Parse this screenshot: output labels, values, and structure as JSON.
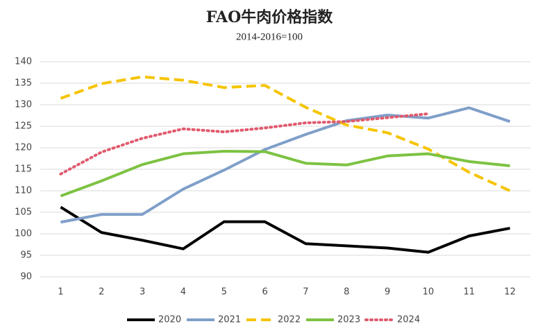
{
  "chart_data": {
    "type": "line",
    "title": "FAO牛肉价格指数",
    "subtitle": "2014-2016=100",
    "categories": [
      "1",
      "2",
      "3",
      "4",
      "5",
      "6",
      "7",
      "8",
      "9",
      "10",
      "11",
      "12"
    ],
    "series": [
      {
        "name": "2020",
        "color": "#000000",
        "dash": "solid",
        "values": [
          106.2,
          100.3,
          98.5,
          96.5,
          102.8,
          102.8,
          97.7,
          97.2,
          96.7,
          95.7,
          99.5,
          101.3
        ]
      },
      {
        "name": "2021",
        "color": "#7f9fc9",
        "dash": "solid",
        "values": [
          102.7,
          104.5,
          104.5,
          110.4,
          114.8,
          119.6,
          123.1,
          126.3,
          127.6,
          126.9,
          129.3,
          126.1
        ]
      },
      {
        "name": "2022",
        "color": "#f5c400",
        "dash": "dashed",
        "values": [
          131.5,
          134.9,
          136.5,
          135.7,
          134.0,
          134.5,
          129.4,
          125.3,
          123.5,
          119.7,
          114.3,
          110.0
        ]
      },
      {
        "name": "2023",
        "color": "#7dc242",
        "dash": "solid",
        "values": [
          108.8,
          112.3,
          116.1,
          118.6,
          119.2,
          119.1,
          116.4,
          116.0,
          118.1,
          118.6,
          116.8,
          115.8
        ]
      },
      {
        "name": "2024",
        "color": "#e05a6d",
        "dash": "dotted",
        "values": [
          113.9,
          119.0,
          122.2,
          124.4,
          123.7,
          124.6,
          125.8,
          126.1,
          127.0,
          127.9,
          null,
          null
        ]
      }
    ],
    "ylim": [
      90,
      140
    ],
    "yticks": [
      90,
      95,
      100,
      105,
      110,
      115,
      120,
      125,
      130,
      135,
      140
    ],
    "grid": true,
    "legend": "bottom"
  }
}
